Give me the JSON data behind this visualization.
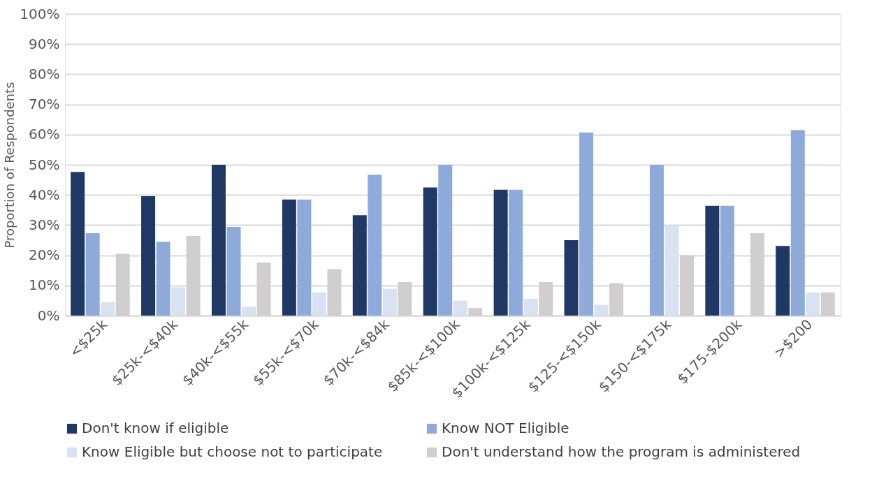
{
  "chart_data": {
    "type": "bar",
    "ylabel": "Proportion of Respondents",
    "categories": [
      "<$25k",
      "$25k-<$40k",
      "$40k-<$55k",
      "$55k-<$70k",
      "$70k-<$84k",
      "$85k-<$100k",
      "$100k-<$125k",
      "$125-<$150k",
      "$150-<$175k",
      "$175-$200k",
      ">$200"
    ],
    "series": [
      {
        "name": "Don't know if eligible",
        "color": "#1f3864",
        "values": [
          47.6,
          39.6,
          50,
          38.5,
          33.3,
          42.5,
          41.7,
          25,
          0,
          36.4,
          23.1
        ]
      },
      {
        "name": "Know NOT Eligible",
        "color": "#8eaadb",
        "values": [
          27.3,
          24.5,
          29.4,
          38.5,
          46.7,
          50,
          41.7,
          60.7,
          50,
          36.4,
          61.5
        ]
      },
      {
        "name": "Know Eligible but choose not to participate",
        "color": "#d9e2f3",
        "values": [
          4.5,
          9.4,
          2.9,
          7.7,
          8.9,
          5,
          5.6,
          3.6,
          30,
          0,
          7.7
        ]
      },
      {
        "name": "Don't understand how the program is administered",
        "color": "#d0cece",
        "values": [
          20.5,
          26.4,
          17.6,
          15.4,
          11.1,
          2.5,
          11.1,
          10.7,
          20,
          27.3,
          7.7
        ]
      }
    ],
    "ylim": [
      0,
      100
    ],
    "yticks": [
      {
        "value": 0,
        "label": "0%"
      },
      {
        "value": 10,
        "label": "10%"
      },
      {
        "value": 20,
        "label": "20%"
      },
      {
        "value": 30,
        "label": "30%"
      },
      {
        "value": 40,
        "label": "40%"
      },
      {
        "value": 50,
        "label": "50%"
      },
      {
        "value": 60,
        "label": "60%"
      },
      {
        "value": 70,
        "label": "70%"
      },
      {
        "value": 80,
        "label": "80%"
      },
      {
        "value": 90,
        "label": "90%"
      },
      {
        "value": 100,
        "label": "100%"
      }
    ],
    "grid": "y",
    "legend": "bottom"
  }
}
